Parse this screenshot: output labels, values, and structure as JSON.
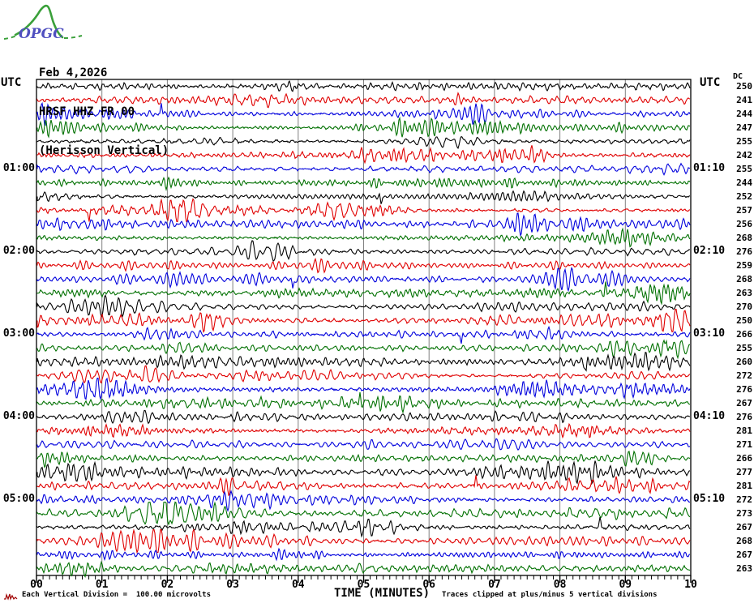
{
  "logo": {
    "text": "OPGC"
  },
  "header": {
    "date": "Feb 4,2026",
    "station_code": "HRSF HHZ FR 00",
    "station_name": "(Herisson Vertical)"
  },
  "axis_labels": {
    "utc_left": "UTC",
    "utc_right": "UTC",
    "dc_header": "DC"
  },
  "footer": {
    "scale_note": "Each Vertical Division =  100.00 microvolts",
    "time_axis_label": "TIME (MINUTES)",
    "clip_note": "Traces clipped at plus/minus 5 vertical divisions"
  },
  "chart_data": {
    "type": "line",
    "subtype": "helicorder_seismogram",
    "title": "HRSF HHZ FR 00 (Herisson Vertical) Feb 4,2026",
    "xlabel": "TIME (MINUTES)",
    "x_tick_labels": [
      "00",
      "01",
      "02",
      "03",
      "04",
      "05",
      "06",
      "07",
      "08",
      "09",
      "10"
    ],
    "x_range_minutes": [
      0,
      10
    ],
    "minutes_per_row": 10,
    "vertical_division_microvolts": 100.0,
    "clip_divisions": 5,
    "grid": {
      "vertical_gridline_every_minute": 1,
      "gridline_color": "#808080"
    },
    "color_map": {
      "black": "#000000",
      "red": "#e00000",
      "blue": "#0000dd",
      "green": "#007000"
    },
    "trace_color_cycle": [
      "black",
      "red",
      "blue",
      "green"
    ],
    "rows": [
      {
        "row": 1,
        "color": "black",
        "dc": 250
      },
      {
        "row": 2,
        "color": "red",
        "dc": 241
      },
      {
        "row": 3,
        "color": "blue",
        "dc": 244
      },
      {
        "row": 4,
        "color": "green",
        "dc": 247
      },
      {
        "row": 5,
        "color": "black",
        "dc": 255
      },
      {
        "row": 6,
        "color": "red",
        "dc": 242
      },
      {
        "row": 7,
        "color": "blue",
        "dc": 255,
        "left_label": "01:00",
        "right_label": "01:10"
      },
      {
        "row": 8,
        "color": "green",
        "dc": 244
      },
      {
        "row": 9,
        "color": "black",
        "dc": 252
      },
      {
        "row": 10,
        "color": "red",
        "dc": 257
      },
      {
        "row": 11,
        "color": "blue",
        "dc": 256
      },
      {
        "row": 12,
        "color": "green",
        "dc": 268
      },
      {
        "row": 13,
        "color": "black",
        "dc": 276,
        "left_label": "02:00",
        "right_label": "02:10"
      },
      {
        "row": 14,
        "color": "red",
        "dc": 259
      },
      {
        "row": 15,
        "color": "blue",
        "dc": 268
      },
      {
        "row": 16,
        "color": "green",
        "dc": 263
      },
      {
        "row": 17,
        "color": "black",
        "dc": 270
      },
      {
        "row": 18,
        "color": "red",
        "dc": 250
      },
      {
        "row": 19,
        "color": "blue",
        "dc": 266,
        "left_label": "03:00",
        "right_label": "03:10"
      },
      {
        "row": 20,
        "color": "green",
        "dc": 255
      },
      {
        "row": 21,
        "color": "black",
        "dc": 260
      },
      {
        "row": 22,
        "color": "red",
        "dc": 272
      },
      {
        "row": 23,
        "color": "blue",
        "dc": 276
      },
      {
        "row": 24,
        "color": "green",
        "dc": 267
      },
      {
        "row": 25,
        "color": "black",
        "dc": 276,
        "left_label": "04:00",
        "right_label": "04:10"
      },
      {
        "row": 26,
        "color": "red",
        "dc": 281
      },
      {
        "row": 27,
        "color": "blue",
        "dc": 271
      },
      {
        "row": 28,
        "color": "green",
        "dc": 266
      },
      {
        "row": 29,
        "color": "black",
        "dc": 277
      },
      {
        "row": 30,
        "color": "red",
        "dc": 281
      },
      {
        "row": 31,
        "color": "blue",
        "dc": 272,
        "left_label": "05:00",
        "right_label": "05:10"
      },
      {
        "row": 32,
        "color": "green",
        "dc": 273
      },
      {
        "row": 33,
        "color": "black",
        "dc": 267
      },
      {
        "row": 34,
        "color": "red",
        "dc": 268
      },
      {
        "row": 35,
        "color": "blue",
        "dc": 267
      },
      {
        "row": 36,
        "color": "green",
        "dc": 263
      }
    ]
  }
}
